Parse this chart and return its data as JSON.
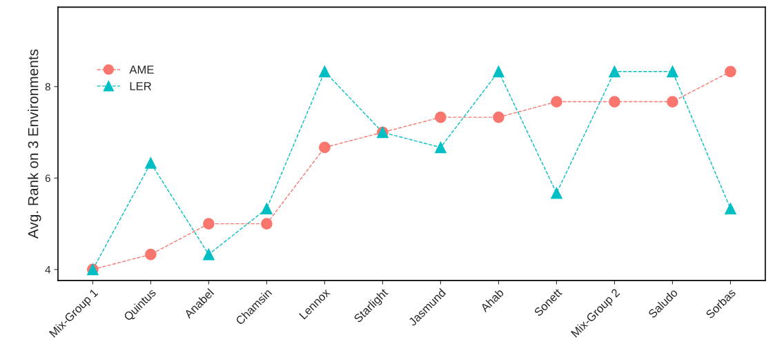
{
  "chart_data": {
    "type": "line",
    "ylabel": "Avg. Rank on 3 Environments",
    "categories": [
      "Mix-Group 1",
      "Quintus",
      "Anabel",
      "Chamsin",
      "Lennox",
      "Starlight",
      "Jasmund",
      "Ahab",
      "Sonett",
      "Mix-Group 2",
      "Saludo",
      "Sorbas"
    ],
    "series": [
      {
        "name": "AME",
        "color": "#f8766d",
        "marker": "circle",
        "values": [
          4,
          4.33,
          5,
          5,
          6.67,
          7,
          7.33,
          7.33,
          7.67,
          7.67,
          7.67,
          8.33
        ]
      },
      {
        "name": "LER",
        "color": "#00bfc4",
        "marker": "triangle",
        "values": [
          4,
          6.33,
          4.33,
          5.33,
          8.33,
          7,
          6.67,
          8.33,
          5.67,
          8.33,
          8.33,
          5.33
        ]
      }
    ],
    "ylim": [
      3.76,
      9.74
    ],
    "yticks": [
      4,
      6,
      8
    ],
    "line_style": "dashed",
    "grid": false,
    "legend": "top left"
  }
}
